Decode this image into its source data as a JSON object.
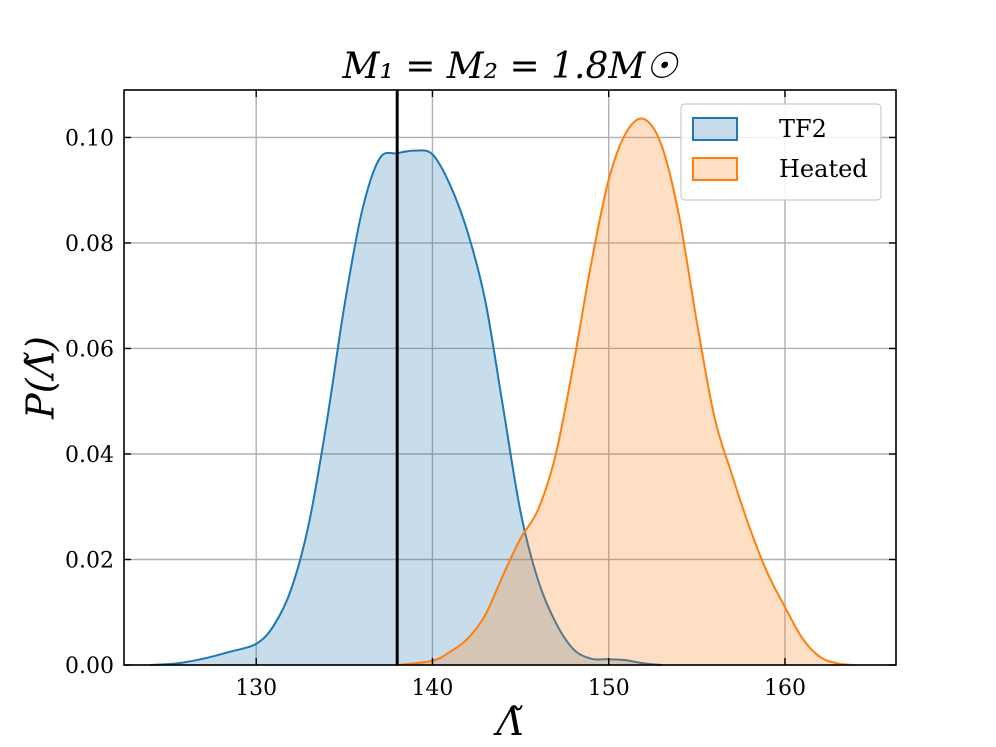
{
  "chart_data": {
    "type": "area",
    "title": "M₁ = M₂ = 1.8M☉",
    "xlabel": "Λ̃",
    "ylabel": "P(Λ̃)",
    "xlim": [
      122.5,
      166.3
    ],
    "ylim": [
      0,
      0.109
    ],
    "xticks": [
      130,
      140,
      150,
      160
    ],
    "yticks": [
      0.0,
      0.02,
      0.04,
      0.06,
      0.08,
      0.1
    ],
    "ytick_labels": [
      "0.00",
      "0.02",
      "0.04",
      "0.06",
      "0.08",
      "0.10"
    ],
    "grid": true,
    "legend_position": "top-right",
    "vline": {
      "x": 138,
      "color": "#000000"
    },
    "series": [
      {
        "name": "TF2",
        "color": "#1f77b4",
        "fill": "#1f77b4",
        "x": [
          124,
          125.5,
          127,
          128.5,
          130,
          131,
          132,
          133,
          134,
          135,
          136,
          137,
          138,
          139,
          140,
          141,
          142,
          143,
          144,
          145,
          146,
          147,
          148,
          149,
          150,
          151,
          152,
          153
        ],
        "y": [
          0.0,
          0.0003,
          0.0012,
          0.0025,
          0.004,
          0.0075,
          0.0145,
          0.027,
          0.046,
          0.068,
          0.086,
          0.096,
          0.097,
          0.0975,
          0.0968,
          0.091,
          0.082,
          0.069,
          0.049,
          0.029,
          0.016,
          0.008,
          0.003,
          0.0012,
          0.0011,
          0.0009,
          0.0003,
          0.0
        ]
      },
      {
        "name": "Heated",
        "color": "#ff7f0e",
        "fill": "#ff7f0e",
        "x": [
          138,
          140,
          141,
          142,
          143,
          144,
          145,
          146,
          147,
          148,
          149,
          150,
          151,
          152,
          153,
          154,
          155,
          156,
          157,
          158,
          159,
          160,
          161,
          162,
          163,
          164
        ],
        "y": [
          0.0,
          0.0008,
          0.0025,
          0.005,
          0.0095,
          0.017,
          0.024,
          0.0295,
          0.04,
          0.057,
          0.076,
          0.092,
          0.101,
          0.1035,
          0.0985,
          0.085,
          0.065,
          0.047,
          0.036,
          0.026,
          0.0175,
          0.011,
          0.005,
          0.0015,
          0.0003,
          0.0
        ]
      }
    ]
  }
}
